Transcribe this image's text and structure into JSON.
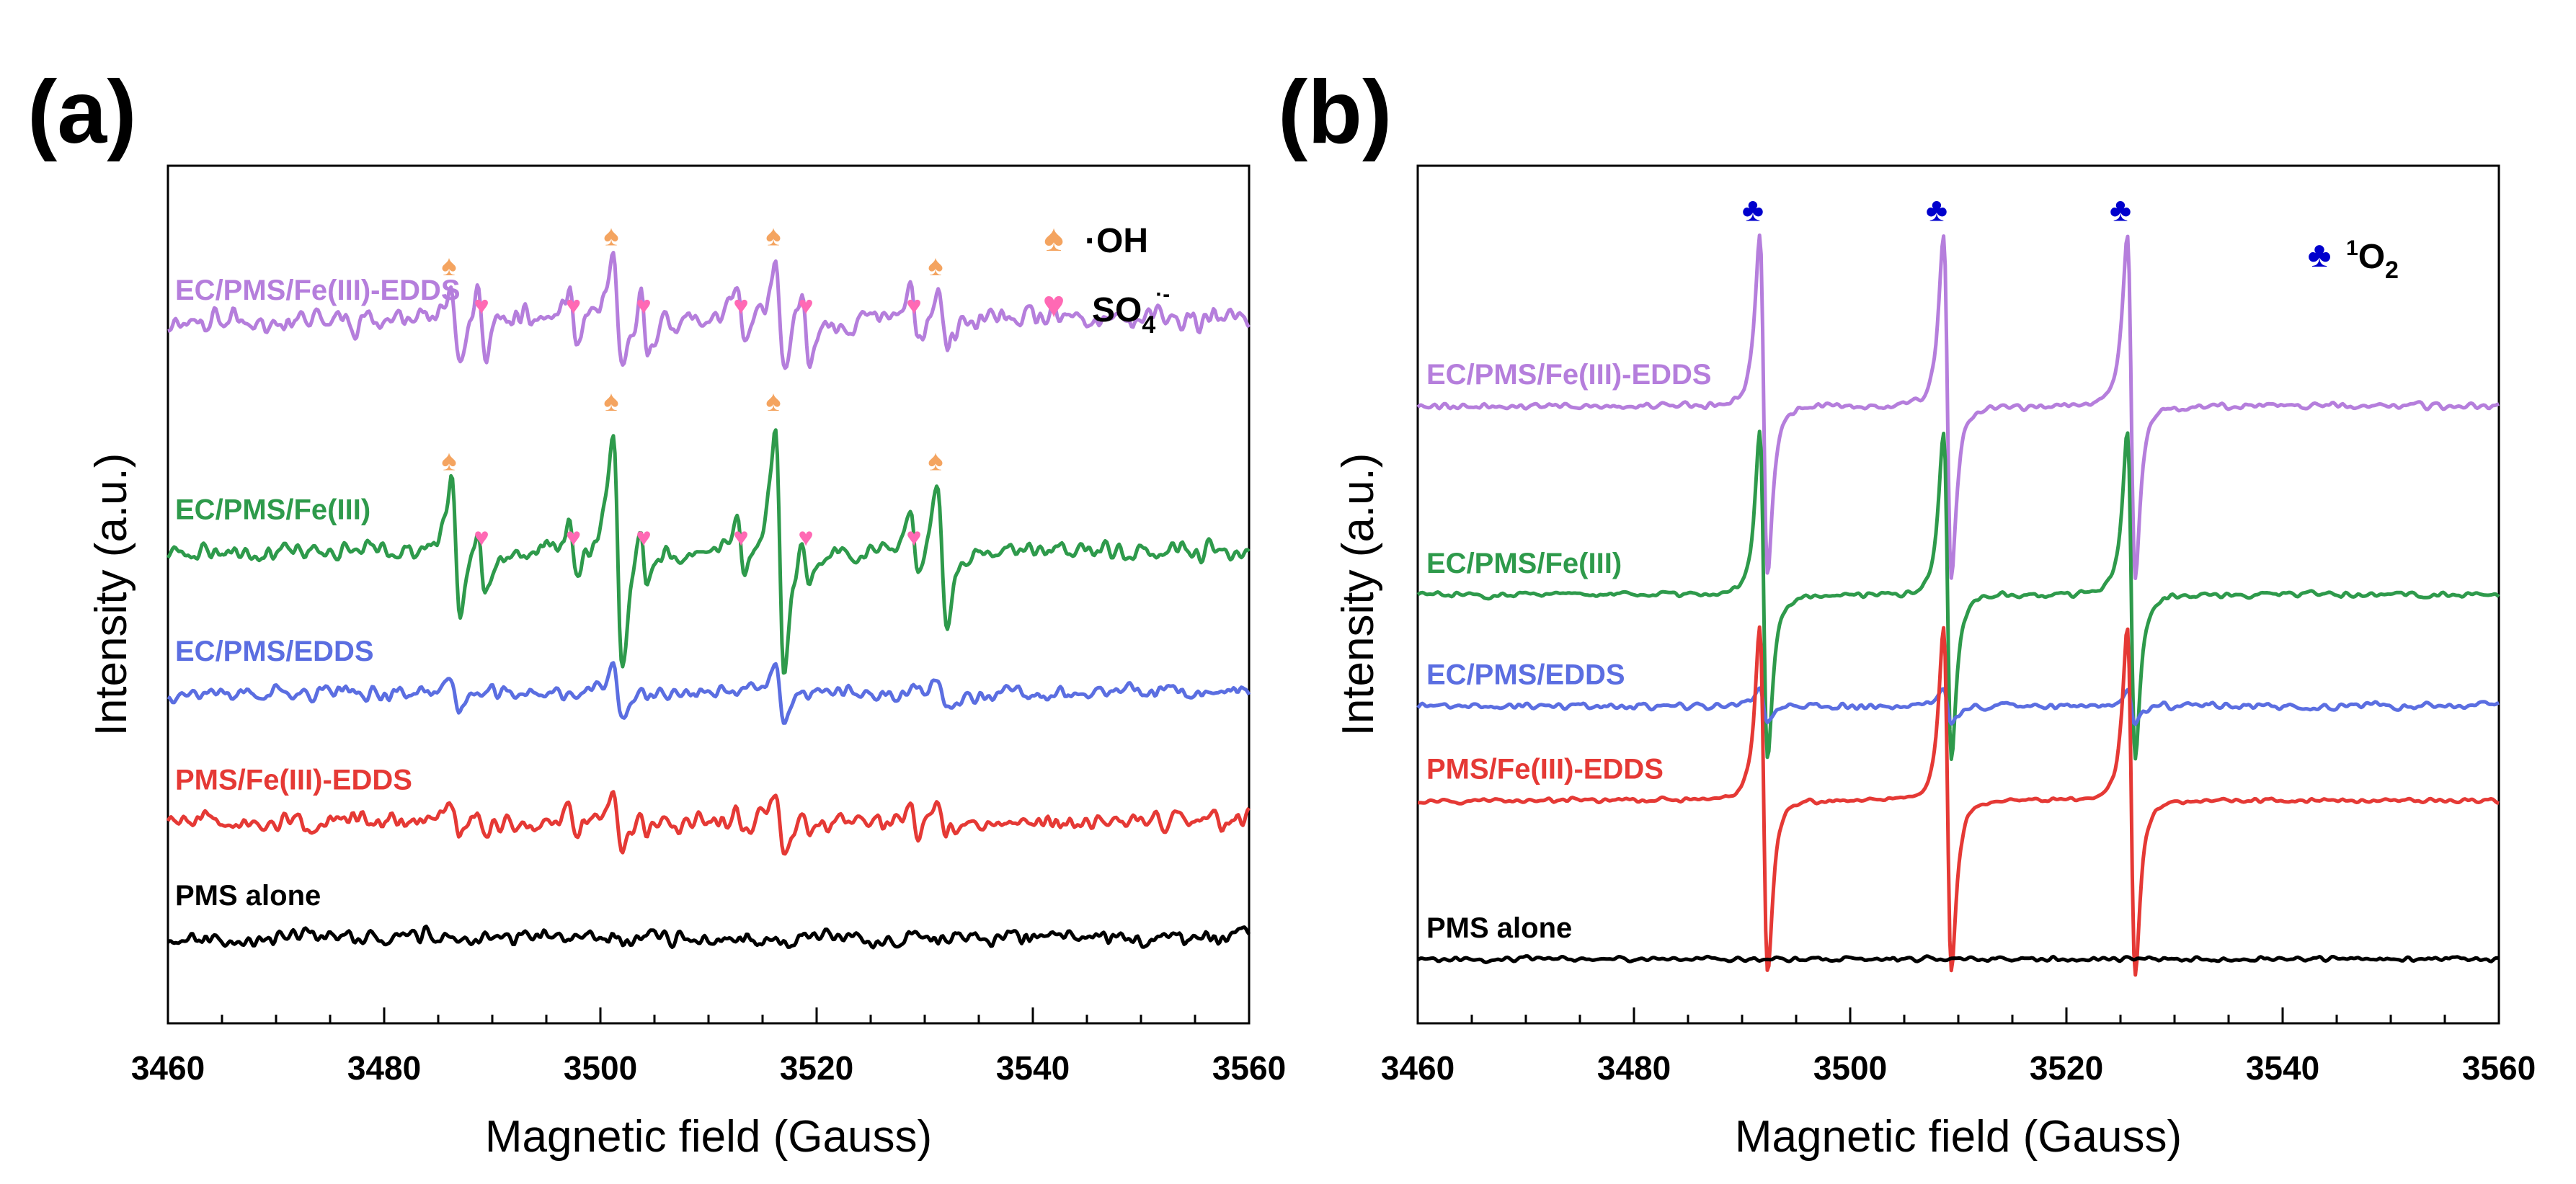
{
  "chart_data": [
    {
      "type": "line",
      "panel_label": "(a)",
      "title": "",
      "xlabel": "Magnetic field (Gauss)",
      "ylabel": "Intensity (a.u.)",
      "xlim": [
        3460,
        3560
      ],
      "xticks": [
        3460,
        3480,
        3500,
        3520,
        3540,
        3560
      ],
      "tick_labels": [
        "3460",
        "3480",
        "3500",
        "3520",
        "3540",
        "3560"
      ],
      "yticks": false,
      "legend": [
        {
          "symbol": "♠",
          "label": "·OH",
          "color": "#F4A460"
        },
        {
          "symbol": "♥",
          "label": "SO4·-",
          "label_main": "SO",
          "label_sub": "4",
          "label_sup": "·-",
          "color": "#FF69B4"
        }
      ],
      "series": [
        {
          "name": "EC/PMS/Fe(III)-EDDS",
          "color": "#B57EDC",
          "baseline": 0.82,
          "noise": 0.022,
          "seed": 11,
          "oh_amp": 0.07,
          "so4_amp": 0.035,
          "oh_markers": [
            3486,
            3501,
            3516,
            3531
          ],
          "so4_markers": [
            3489,
            3497.5,
            3504,
            3513,
            3519,
            3529
          ]
        },
        {
          "name": "EC/PMS/Fe(III)",
          "color": "#2E9A4B",
          "baseline": 0.55,
          "noise": 0.016,
          "seed": 23,
          "oh_amp": 0.14,
          "so4_amp": 0.035,
          "oh_markers": [
            3486,
            3501,
            3516,
            3531
          ],
          "so4_markers": [
            3489,
            3497.5,
            3504,
            3513,
            3519,
            3529
          ]
        },
        {
          "name": "EC/PMS/EDDS",
          "color": "#5B6EE1",
          "baseline": 0.385,
          "noise": 0.012,
          "seed": 37,
          "oh_amp": 0.03,
          "so4_amp": 0.0,
          "oh_markers": [],
          "so4_markers": []
        },
        {
          "name": "PMS/Fe(III)-EDDS",
          "color": "#E53935",
          "baseline": 0.235,
          "noise": 0.016,
          "seed": 51,
          "oh_amp": 0.035,
          "so4_amp": 0.015,
          "oh_markers": [],
          "so4_markers": []
        },
        {
          "name": "PMS alone",
          "color": "#000000",
          "baseline": 0.1,
          "noise": 0.013,
          "seed": 67,
          "oh_amp": 0.0,
          "so4_amp": 0.0,
          "oh_markers": [],
          "so4_markers": []
        }
      ]
    },
    {
      "type": "line",
      "panel_label": "(b)",
      "title": "",
      "xlabel": "Magnetic field (Gauss)",
      "ylabel": "Intensity (a.u.)",
      "xlim": [
        3460,
        3560
      ],
      "xticks": [
        3460,
        3480,
        3500,
        3520,
        3540,
        3560
      ],
      "tick_labels": [
        "3460",
        "3480",
        "3500",
        "3520",
        "3540",
        "3560"
      ],
      "yticks": false,
      "legend": [
        {
          "symbol": "♣",
          "label": "1O2",
          "label_sup": "1",
          "label_main": "O",
          "label_sub": "2",
          "color": "#0000CD"
        }
      ],
      "series": [
        {
          "name": "EC/PMS/Fe(III)-EDDS",
          "color": "#B57EDC",
          "baseline": 0.72,
          "noise": 0.005,
          "seed": 79,
          "o2_amp": 0.2,
          "o2_peaks": [
            3492,
            3509,
            3526
          ],
          "o2_markers": [
            3491,
            3508,
            3525
          ]
        },
        {
          "name": "EC/PMS/Fe(III)",
          "color": "#2E9A4B",
          "baseline": 0.5,
          "noise": 0.005,
          "seed": 83,
          "o2_amp": 0.19,
          "o2_peaks": [
            3492,
            3509,
            3526
          ],
          "o2_markers": []
        },
        {
          "name": "EC/PMS/EDDS",
          "color": "#5B6EE1",
          "baseline": 0.37,
          "noise": 0.005,
          "seed": 89,
          "o2_amp": 0.02,
          "o2_peaks": [
            3492,
            3509,
            3526
          ],
          "o2_markers": []
        },
        {
          "name": "PMS/Fe(III)-EDDS",
          "color": "#E53935",
          "baseline": 0.26,
          "noise": 0.004,
          "seed": 97,
          "o2_amp": 0.2,
          "o2_peaks": [
            3492,
            3509,
            3526
          ],
          "o2_markers": []
        },
        {
          "name": "PMS alone",
          "color": "#000000",
          "baseline": 0.075,
          "noise": 0.004,
          "seed": 101,
          "o2_amp": 0.0,
          "o2_peaks": [],
          "o2_markers": []
        }
      ]
    }
  ]
}
